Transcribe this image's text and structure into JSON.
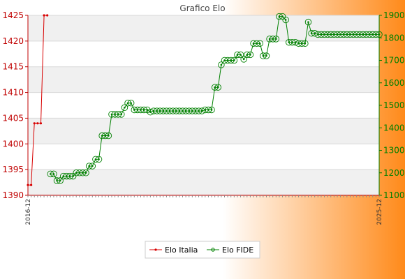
{
  "chart_data": {
    "type": "line",
    "title": "Grafico Elo",
    "colors": {
      "italia": "#d80000",
      "fide": "#008000"
    },
    "axes": {
      "left": {
        "min": 1390,
        "max": 1425,
        "ticks": [
          1390,
          1395,
          1400,
          1405,
          1410,
          1415,
          1420,
          1425
        ]
      },
      "right": {
        "min": 1100,
        "max": 1900,
        "ticks": [
          1100,
          1200,
          1300,
          1400,
          1500,
          1600,
          1700,
          1800,
          1900
        ]
      }
    },
    "x_first_label": "2016-12",
    "x_last_label": "2025-12",
    "legend": {
      "position": "bottom",
      "entries": [
        "Elo Italia",
        "Elo FIDE"
      ]
    },
    "series": [
      {
        "name": "Elo Italia",
        "axis": "left",
        "start_index": 0,
        "values": [
          1392,
          1392,
          1404,
          1404,
          1404,
          1425,
          1425
        ]
      },
      {
        "name": "Elo FIDE",
        "axis": "right",
        "start_index": 7,
        "values": [
          1195,
          1195,
          1165,
          1165,
          1185,
          1185,
          1185,
          1185,
          1200,
          1200,
          1200,
          1200,
          1230,
          1230,
          1260,
          1260,
          1365,
          1365,
          1365,
          1460,
          1460,
          1460,
          1460,
          1490,
          1510,
          1510,
          1480,
          1480,
          1480,
          1480,
          1480,
          1470,
          1475,
          1475,
          1475,
          1475,
          1475,
          1475,
          1475,
          1475,
          1475,
          1475,
          1475,
          1475,
          1475,
          1475,
          1475,
          1475,
          1480,
          1480,
          1480,
          1580,
          1580,
          1680,
          1700,
          1700,
          1700,
          1700,
          1725,
          1725,
          1705,
          1725,
          1725,
          1775,
          1775,
          1775,
          1720,
          1720,
          1795,
          1795,
          1795,
          1895,
          1895,
          1880,
          1780,
          1780,
          1780,
          1775,
          1775,
          1775,
          1870,
          1820,
          1820,
          1815,
          1815,
          1815,
          1815,
          1815,
          1815,
          1815,
          1815,
          1815,
          1815,
          1815,
          1815,
          1815,
          1815,
          1815,
          1815,
          1815,
          1815,
          1815,
          1815
        ]
      }
    ]
  }
}
